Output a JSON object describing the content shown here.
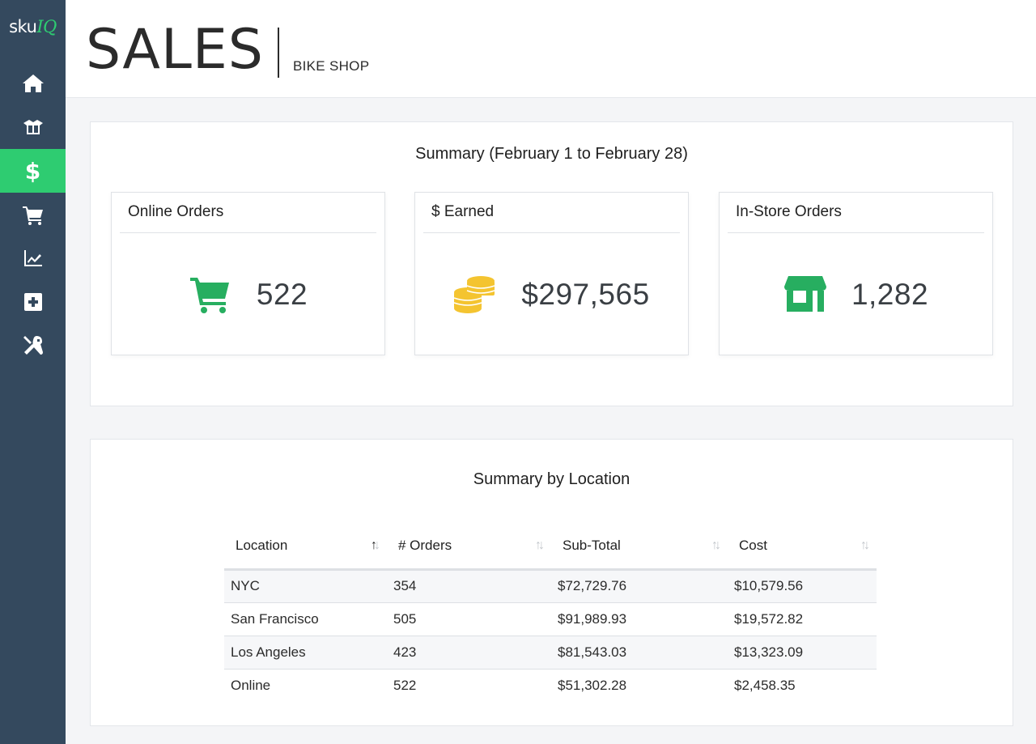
{
  "brand": {
    "logo_part1": "sku",
    "logo_part2": "IQ",
    "accent": "#2ecc71",
    "sidebar_bg": "#34495e"
  },
  "sidebar": {
    "items": [
      {
        "icon": "home-icon",
        "active": false
      },
      {
        "icon": "box-icon",
        "active": false
      },
      {
        "icon": "dollar-icon",
        "label": "$",
        "active": true
      },
      {
        "icon": "cart-icon",
        "active": false
      },
      {
        "icon": "chart-icon",
        "active": false
      },
      {
        "icon": "plus-square-icon",
        "active": false
      },
      {
        "icon": "tools-icon",
        "active": false
      }
    ]
  },
  "header": {
    "title": "SALES",
    "subtitle": "BIKE SHOP"
  },
  "summary": {
    "heading": "Summary (February 1 to February 28)",
    "cards": [
      {
        "title": "Online Orders",
        "value": "522",
        "icon": "shopping-cart-icon",
        "icon_color": "#27ae60"
      },
      {
        "title": "$ Earned",
        "value": "$297,565",
        "icon": "coins-icon",
        "icon_color": "#f4c430"
      },
      {
        "title": "In-Store Orders",
        "value": "1,282",
        "icon": "store-icon",
        "icon_color": "#27ae60"
      }
    ]
  },
  "location_summary": {
    "heading": "Summary by Location",
    "columns": [
      "Location",
      "# Orders",
      "Sub-Total",
      "Cost"
    ],
    "sort": {
      "column": "Location",
      "direction": "ascending"
    },
    "rows": [
      [
        "NYC",
        "354",
        "$72,729.76",
        "$10,579.56"
      ],
      [
        "San Francisco",
        "505",
        "$91,989.93",
        "$19,572.82"
      ],
      [
        "Los Angeles",
        "423",
        "$81,543.03",
        "$13,323.09"
      ],
      [
        "Online",
        "522",
        "$51,302.28",
        "$2,458.35"
      ]
    ]
  }
}
